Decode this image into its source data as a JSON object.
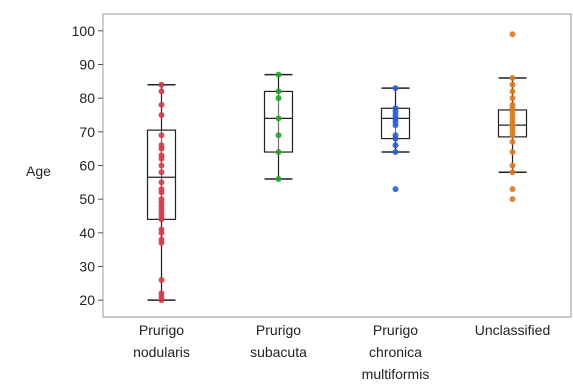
{
  "chart_data": {
    "type": "box",
    "ylabel": "Age",
    "xlabel": "",
    "ylim": [
      15,
      105
    ],
    "yticks": [
      20,
      30,
      40,
      50,
      60,
      70,
      80,
      90,
      100
    ],
    "grid": false,
    "categories": [
      {
        "name": "Prurigo nodularis",
        "label_lines": [
          "Prurigo",
          "nodularis"
        ],
        "color": "#d63b4e",
        "whisker_low": 20,
        "q1": 44,
        "median": 56.5,
        "q3": 70.5,
        "whisker_high": 84,
        "points": [
          20,
          21,
          22,
          26,
          37,
          38,
          40,
          41,
          44,
          45,
          46,
          47,
          48,
          49,
          50,
          52,
          53,
          55,
          58,
          60,
          62,
          63,
          65,
          66,
          69,
          75,
          78,
          82,
          84
        ]
      },
      {
        "name": "Prurigo subacuta",
        "label_lines": [
          "Prurigo",
          "subacuta"
        ],
        "color": "#2ea02e",
        "whisker_low": 56,
        "q1": 64,
        "median": 74,
        "q3": 82,
        "whisker_high": 87,
        "points": [
          56,
          64,
          69,
          74,
          80,
          82,
          87
        ]
      },
      {
        "name": "Prurigo chronica multiformis",
        "label_lines": [
          "Prurigo",
          "chronica",
          "multiformis"
        ],
        "color": "#2a5fd6",
        "whisker_low": 64,
        "q1": 68,
        "median": 74,
        "q3": 77,
        "whisker_high": 83,
        "points": [
          53,
          64,
          66,
          68,
          69,
          72,
          73,
          74,
          74,
          75,
          76,
          77,
          83
        ]
      },
      {
        "name": "Unclassified",
        "label_lines": [
          "Unclassified"
        ],
        "color": "#d97a26",
        "whisker_low": 58,
        "q1": 68.5,
        "median": 72,
        "q3": 76.5,
        "whisker_high": 86,
        "points": [
          50,
          53,
          58,
          60,
          64,
          67,
          69,
          70,
          71,
          72,
          72,
          73,
          74,
          75,
          76,
          77,
          78,
          80,
          82,
          84,
          86,
          99
        ]
      }
    ]
  }
}
